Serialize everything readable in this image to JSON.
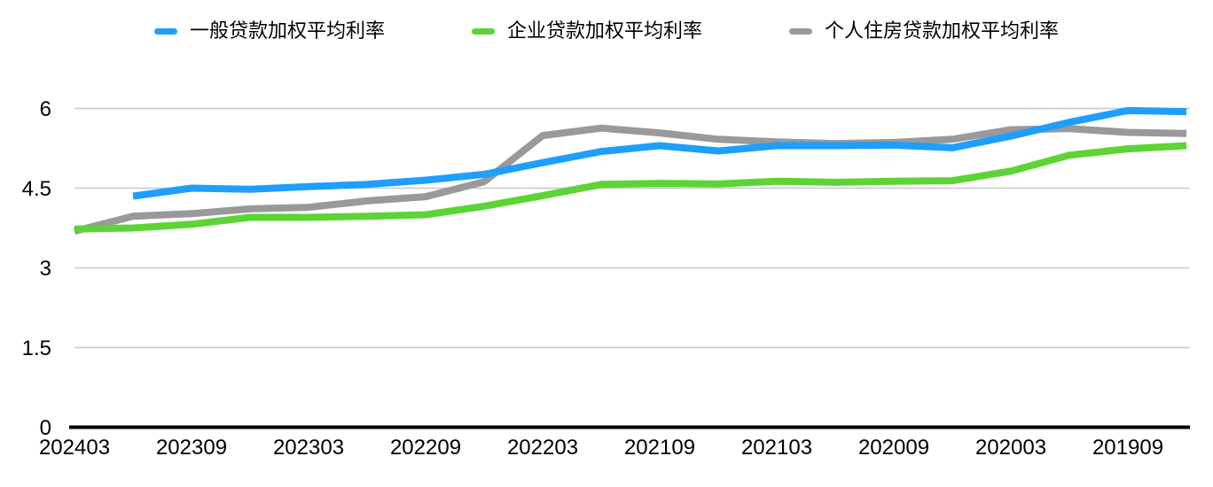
{
  "legend": {
    "items": [
      {
        "label": "一般贷款加权平均利率",
        "color": "#1E9EFD"
      },
      {
        "label": "企业贷款加权平均利率",
        "color": "#5CD435"
      },
      {
        "label": "个人住房贷款加权平均利率",
        "color": "#999999"
      }
    ]
  },
  "colors": {
    "grid": "#C8C8CC",
    "axis": "#000000",
    "tick_text": "#000000"
  },
  "chart_data": {
    "type": "line",
    "x": [
      "202403",
      "202312",
      "202309",
      "202306",
      "202303",
      "202212",
      "202209",
      "202206",
      "202203",
      "202112",
      "202109",
      "202106",
      "202103",
      "202012",
      "202009",
      "202006",
      "202003",
      "201912",
      "201909",
      "201906"
    ],
    "x_tick_indices": [
      0,
      2,
      4,
      6,
      8,
      10,
      12,
      14,
      16,
      18
    ],
    "x_tick_labels": [
      "202403",
      "202309",
      "202303",
      "202209",
      "202203",
      "202109",
      "202103",
      "202009",
      "202003",
      "201909"
    ],
    "yticks": [
      0,
      1.5,
      3,
      4.5,
      6
    ],
    "ytick_labels": [
      "0",
      "1.5",
      "3",
      "4.5",
      "6"
    ],
    "ylim": [
      0,
      6
    ],
    "grid": "horizontal",
    "legend_position": "top",
    "series": [
      {
        "name": "一般贷款加权平均利率",
        "color": "#1E9EFD",
        "values": [
          null,
          4.35,
          4.5,
          4.48,
          4.53,
          4.57,
          4.65,
          4.76,
          4.98,
          5.19,
          5.3,
          5.2,
          5.3,
          5.3,
          5.31,
          5.26,
          5.48,
          5.74,
          5.96,
          5.94
        ]
      },
      {
        "name": "企业贷款加权平均利率",
        "color": "#5CD435",
        "values": [
          3.73,
          3.75,
          3.82,
          3.95,
          3.95,
          3.97,
          4.0,
          4.16,
          4.36,
          4.57,
          4.59,
          4.58,
          4.63,
          4.61,
          4.63,
          4.64,
          4.82,
          5.12,
          5.24,
          5.3
        ]
      },
      {
        "name": "个人住房贷款加权平均利率",
        "color": "#999999",
        "values": [
          3.69,
          3.97,
          4.02,
          4.11,
          4.14,
          4.26,
          4.34,
          4.62,
          5.49,
          5.63,
          5.54,
          5.42,
          5.37,
          5.34,
          5.36,
          5.42,
          5.6,
          5.62,
          5.55,
          5.53
        ]
      }
    ]
  }
}
